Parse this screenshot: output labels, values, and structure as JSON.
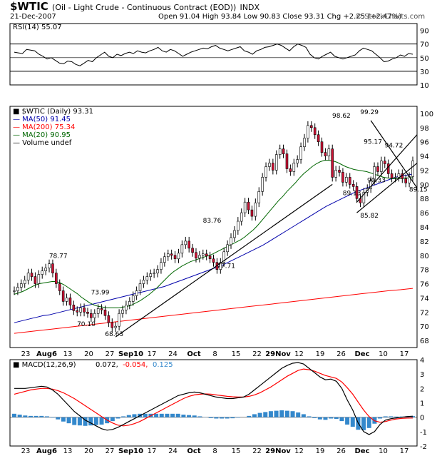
{
  "header": {
    "symbol": "$WTIC",
    "description": "(Oil - Light Crude - Continuous Contract (EOD))",
    "exchange": "INDX",
    "date": "21-Dec-2007",
    "ohlc": "Open 91.04  High 93.84  Low 90.83  Close 93.31  Chg +2.25 (+2.47%)",
    "brand": "© StockCharts.com"
  },
  "colors": {
    "up": "#ffffff",
    "down": "#cc1133",
    "ma50": "#0000aa",
    "ma200": "#ff0000",
    "ma20": "#006600",
    "macd": "#000000",
    "signal": "#ff0000",
    "hist": "#3388cc",
    "rsi_fill": "#4a7a4a"
  },
  "chart_data": [
    {
      "type": "line",
      "panel": "RSI",
      "legend": "RSI(14) 55.07",
      "ylim": [
        10,
        100
      ],
      "yticks": [
        10,
        30,
        50,
        70,
        90
      ],
      "values": [
        58,
        57,
        56,
        62,
        61,
        60,
        55,
        52,
        48,
        50,
        46,
        42,
        41,
        45,
        44,
        40,
        38,
        42,
        46,
        44,
        50,
        54,
        58,
        52,
        50,
        55,
        53,
        56,
        58,
        56,
        60,
        58,
        57,
        60,
        62,
        65,
        60,
        58,
        62,
        60,
        56,
        52,
        55,
        58,
        60,
        62,
        64,
        63,
        66,
        68,
        64,
        62,
        60,
        62,
        64,
        66,
        60,
        58,
        55,
        60,
        62,
        65,
        66,
        68,
        70,
        68,
        64,
        60,
        66,
        70,
        68,
        65,
        55,
        50,
        48,
        52,
        55,
        58,
        52,
        50,
        48,
        50,
        52,
        54,
        60,
        64,
        62,
        60,
        55,
        50,
        44,
        45,
        48,
        50,
        54,
        52,
        56,
        55
      ],
      "overlines": [
        70,
        50,
        30
      ]
    },
    {
      "type": "candlestick",
      "panel": "price",
      "legend": [
        "$WTIC (Daily) 93.31",
        "MA(50) 91.45",
        "MA(200) 75.34",
        "MA(20) 90.95",
        "Volume undef"
      ],
      "ylim": [
        67,
        101
      ],
      "yticks": [
        68,
        70,
        72,
        74,
        76,
        78,
        80,
        82,
        84,
        86,
        88,
        90,
        92,
        94,
        96,
        98,
        100
      ],
      "xtick_labels": [
        "23",
        "Aug6",
        "13",
        "20",
        "27",
        "Sep10",
        "17",
        "24",
        "Oct",
        "8",
        "15",
        "22",
        "29Nov",
        "12",
        "19",
        "26",
        "Dec",
        "10",
        "17"
      ],
      "close": [
        75,
        75.5,
        76,
        76.5,
        77.5,
        77,
        76,
        77.3,
        77.8,
        78.2,
        78.8,
        77.5,
        76,
        75,
        73.5,
        74,
        73,
        72.2,
        72,
        72.6,
        72,
        71.8,
        71.2,
        71.8,
        72.5,
        72.3,
        71.5,
        70.5,
        69.8,
        70,
        71.8,
        72.3,
        73,
        73.5,
        74.3,
        75,
        76,
        76.5,
        77,
        77.4,
        77.5,
        78,
        79,
        79.8,
        80.2,
        80,
        79.5,
        80.3,
        81.5,
        82,
        81,
        80.4,
        79.6,
        80,
        80.2,
        79.9,
        79.5,
        79,
        78,
        79,
        80.5,
        81.5,
        82.5,
        83.5,
        84.8,
        86,
        87.5,
        86.4,
        85.5,
        87.4,
        89,
        91,
        92.5,
        93,
        92,
        94.2,
        95,
        94.3,
        92.2,
        91.8,
        93,
        93.5,
        95.3,
        96.5,
        98.3,
        98,
        97,
        96,
        94.5,
        94,
        95,
        91,
        92,
        91.7,
        90.3,
        91,
        90,
        89.7,
        88,
        87.4,
        88.9,
        89.4,
        90.5,
        92.5,
        91.8,
        93.3,
        92.9,
        91.5,
        90.9,
        91,
        91.5,
        90.8,
        90.2,
        91.1,
        93.31
      ],
      "ma20": [
        74.5,
        74.7,
        74.9,
        75.2,
        75.5,
        75.8,
        76,
        76.1,
        76.2,
        76.3,
        76.3,
        76.1,
        75.8,
        75.4,
        75,
        74.6,
        74.1,
        73.7,
        73.3,
        73,
        72.8,
        72.7,
        72.6,
        72.6,
        72.6,
        72.6,
        72.7,
        72.8,
        73,
        73.3,
        73.6,
        74,
        74.4,
        74.9,
        75.4,
        76,
        76.6,
        77.2,
        77.7,
        78.1,
        78.5,
        78.8,
        79.1,
        79.3,
        79.5,
        79.7,
        79.9,
        80.1,
        80.4,
        80.7,
        81,
        81.3,
        81.6,
        81.9,
        82.2,
        82.6,
        83.1,
        83.6,
        84.2,
        84.9,
        85.6,
        86.3,
        87,
        87.7,
        88.3,
        89,
        89.6,
        90.2,
        90.9,
        91.5,
        92,
        92.5,
        92.9,
        93.2,
        93.4,
        93.4,
        93.3,
        93.1,
        92.8,
        92.5,
        92.3,
        92.1,
        92,
        91.9,
        91.8,
        91.6,
        91.4,
        91.2,
        91,
        90.9,
        90.8,
        90.8,
        90.8,
        90.9,
        90.9,
        90.95
      ],
      "ma50": [
        70.5,
        70.7,
        70.9,
        71.1,
        71.3,
        71.5,
        71.6,
        71.8,
        72,
        72.2,
        72.4,
        72.6,
        72.8,
        73,
        73.2,
        73.4,
        73.6,
        73.8,
        74,
        74.2,
        74.4,
        74.6,
        74.8,
        75,
        75.2,
        75.4,
        75.6,
        75.9,
        76.2,
        76.5,
        76.8,
        77.1,
        77.4,
        77.7,
        78,
        78.3,
        78.6,
        79,
        79.4,
        79.8,
        80.2,
        80.6,
        81,
        81.4,
        81.9,
        82.4,
        82.9,
        83.4,
        83.9,
        84.4,
        84.9,
        85.4,
        85.9,
        86.4,
        86.9,
        87.3,
        87.7,
        88.1,
        88.5,
        88.9,
        89.2,
        89.5,
        89.8,
        90.1,
        90.4,
        90.7,
        91,
        91.2,
        91.3,
        91.45
      ],
      "ma200": [
        69,
        69.2,
        69.4,
        69.6,
        69.8,
        70,
        70.2,
        70.4,
        70.6,
        70.8,
        71,
        71.2,
        71.4,
        71.6,
        71.8,
        72,
        72.2,
        72.4,
        72.6,
        72.8,
        73,
        73.2,
        73.4,
        73.6,
        73.8,
        74,
        74.2,
        74.4,
        74.6,
        74.8,
        75,
        75.15,
        75.34
      ],
      "annotations": [
        {
          "label": "78.77",
          "value": 78.77
        },
        {
          "label": "73.99",
          "value": 73.99
        },
        {
          "label": "70.10",
          "value": 70.1
        },
        {
          "label": "68.63",
          "value": 68.63
        },
        {
          "label": "83.76",
          "value": 83.76
        },
        {
          "label": "77.71",
          "value": 77.71
        },
        {
          "label": "98.62",
          "value": 98.62
        },
        {
          "label": "99.29",
          "value": 99.29
        },
        {
          "label": "95.17",
          "value": 95.17
        },
        {
          "label": "89.13",
          "value": 89.13
        },
        {
          "label": "90.33",
          "value": 90.33
        },
        {
          "label": "85.82",
          "value": 85.82
        },
        {
          "label": "94.72",
          "value": 94.72
        },
        {
          "label": "89.15",
          "value": 89.15
        }
      ]
    },
    {
      "type": "line",
      "panel": "MACD",
      "legend": [
        "MACD(12,26,9)",
        "0.072,",
        "-0.054,",
        "0.125"
      ],
      "ylim": [
        -2,
        4
      ],
      "yticks": [
        -2,
        -1,
        0,
        1,
        2,
        3,
        4
      ],
      "xtick_labels": [
        "23",
        "Aug6",
        "13",
        "20",
        "27",
        "Sep10",
        "17",
        "24",
        "Oct",
        "8",
        "15",
        "22",
        "29Nov",
        "12",
        "19",
        "26",
        "Dec",
        "10",
        "17"
      ],
      "macd": [
        2,
        2,
        2,
        2.05,
        2.1,
        2.15,
        2.1,
        1.9,
        1.6,
        1.2,
        0.8,
        0.4,
        0.1,
        -0.2,
        -0.4,
        -0.6,
        -0.8,
        -0.9,
        -0.85,
        -0.7,
        -0.5,
        -0.3,
        -0.1,
        0.1,
        0.3,
        0.5,
        0.7,
        0.9,
        1.1,
        1.3,
        1.5,
        1.6,
        1.7,
        1.75,
        1.7,
        1.6,
        1.5,
        1.4,
        1.35,
        1.3,
        1.3,
        1.35,
        1.4,
        1.6,
        1.9,
        2.2,
        2.5,
        2.8,
        3.1,
        3.4,
        3.6,
        3.75,
        3.8,
        3.7,
        3.4,
        3.1,
        2.8,
        2.6,
        2.65,
        2.5,
        2,
        1.2,
        0.5,
        -0.4,
        -1,
        -1.2,
        -1,
        -0.5,
        -0.2,
        -0.1,
        -0.05,
        0,
        0.05,
        0.072
      ],
      "signal": [
        1.6,
        1.7,
        1.8,
        1.9,
        1.95,
        2,
        2,
        1.95,
        1.85,
        1.7,
        1.5,
        1.3,
        1.05,
        0.8,
        0.55,
        0.3,
        0.05,
        -0.2,
        -0.4,
        -0.55,
        -0.6,
        -0.55,
        -0.45,
        -0.3,
        -0.1,
        0.1,
        0.3,
        0.5,
        0.7,
        0.9,
        1.1,
        1.3,
        1.45,
        1.55,
        1.6,
        1.62,
        1.6,
        1.55,
        1.5,
        1.45,
        1.42,
        1.4,
        1.4,
        1.45,
        1.55,
        1.7,
        1.9,
        2.1,
        2.35,
        2.6,
        2.85,
        3.05,
        3.25,
        3.35,
        3.3,
        3.2,
        3.05,
        2.9,
        2.8,
        2.7,
        2.45,
        2.05,
        1.6,
        1.05,
        0.5,
        0.05,
        -0.25,
        -0.35,
        -0.3,
        -0.2,
        -0.12,
        -0.08,
        -0.06,
        -0.054
      ]
    }
  ]
}
